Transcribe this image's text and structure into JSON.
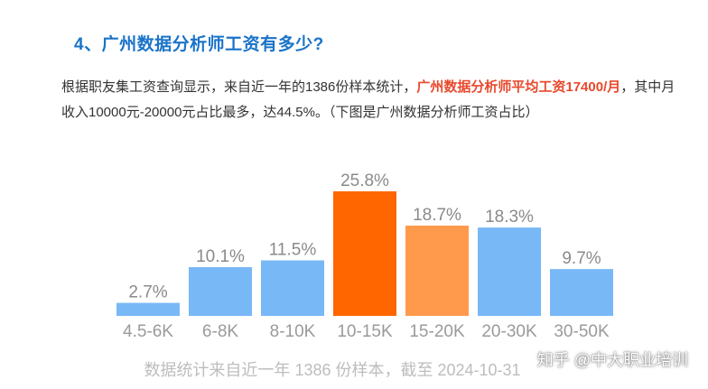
{
  "article": {
    "heading": "4、广州数据分析师工资有多少?",
    "para_part1": "根据职友集工资查询显示，来自近一年的1386份样本统计，",
    "para_highlight": "广州数据分析师平均工资17400/月",
    "para_part2": "，其中月收入10000元-20000元占比最多，达44.5%。（下图是广州数据分析师工资占比）"
  },
  "watermark": "知乎 @中大职业培训",
  "colors": {
    "blue": "#79b8f7",
    "dark_orange": "#ff6600",
    "light_orange": "#ff9a4d",
    "heading": "#1a73c9",
    "highlight": "#e8492c"
  },
  "chart_data": {
    "type": "bar",
    "categories": [
      "4.5-6K",
      "6-8K",
      "8-10K",
      "10-15K",
      "15-20K",
      "20-30K",
      "30-50K"
    ],
    "values": [
      2.7,
      10.1,
      11.5,
      25.8,
      18.7,
      18.3,
      9.7
    ],
    "value_labels": [
      "2.7%",
      "10.1%",
      "11.5%",
      "25.8%",
      "18.7%",
      "18.3%",
      "9.7%"
    ],
    "bar_colors": [
      "#79b8f7",
      "#79b8f7",
      "#79b8f7",
      "#ff6600",
      "#ff9a4d",
      "#79b8f7",
      "#79b8f7"
    ],
    "caption": "数据统计来自近一年 1386 份样本，截至 2024-10-31",
    "ylim": [
      0,
      25.8
    ],
    "grid": false,
    "title": "",
    "xlabel": "",
    "ylabel": ""
  }
}
